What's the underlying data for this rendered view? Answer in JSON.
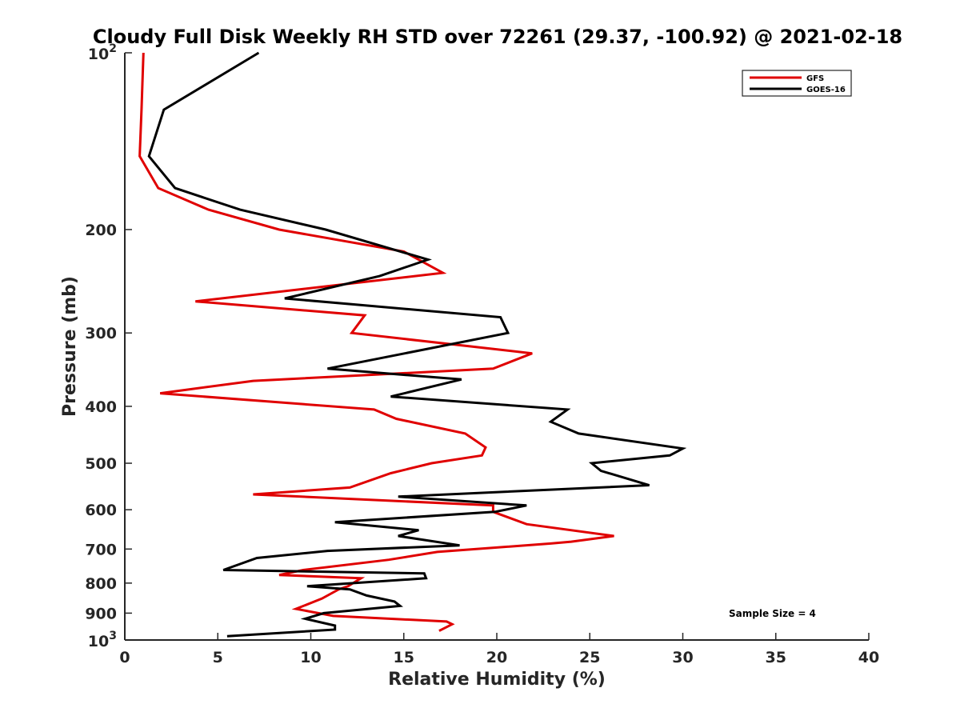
{
  "chart_data": {
    "type": "line",
    "title": "Cloudy Full Disk Weekly RH STD over 72261 (29.37, -100.92) @ 2021-02-18",
    "xlabel": "Relative Humidity (%)",
    "ylabel": "Pressure (mb)",
    "xlim": [
      0,
      40
    ],
    "ylim": [
      100,
      1000
    ],
    "y_scale": "log",
    "y_reversed": true,
    "grid": false,
    "legend_position": "top-right",
    "x_ticks": [
      "0",
      "5",
      "10",
      "15",
      "20",
      "25",
      "30",
      "35",
      "40"
    ],
    "y_ticks": [
      {
        "value": 100,
        "base": "10",
        "exp": "2"
      },
      {
        "value": 200,
        "label": "200"
      },
      {
        "value": 300,
        "label": "300"
      },
      {
        "value": 400,
        "label": "400"
      },
      {
        "value": 500,
        "label": "500"
      },
      {
        "value": 600,
        "label": "600"
      },
      {
        "value": 700,
        "label": "700"
      },
      {
        "value": 800,
        "label": "800"
      },
      {
        "value": 900,
        "label": "900"
      },
      {
        "value": 1000,
        "base": "10",
        "exp": "3"
      }
    ],
    "annotation": "Sample Size = 4",
    "series": [
      {
        "name": "GFS",
        "color": "#e00000",
        "points": [
          {
            "x": 1.0,
            "y": 100
          },
          {
            "x": 0.9,
            "y": 125
          },
          {
            "x": 0.8,
            "y": 150
          },
          {
            "x": 1.8,
            "y": 170
          },
          {
            "x": 4.5,
            "y": 185
          },
          {
            "x": 8.3,
            "y": 200
          },
          {
            "x": 15.0,
            "y": 218
          },
          {
            "x": 17.1,
            "y": 237
          },
          {
            "x": 3.8,
            "y": 265
          },
          {
            "x": 12.9,
            "y": 280
          },
          {
            "x": 12.2,
            "y": 300
          },
          {
            "x": 21.9,
            "y": 325
          },
          {
            "x": 19.8,
            "y": 345
          },
          {
            "x": 6.9,
            "y": 362
          },
          {
            "x": 1.9,
            "y": 380
          },
          {
            "x": 13.4,
            "y": 405
          },
          {
            "x": 14.6,
            "y": 420
          },
          {
            "x": 18.3,
            "y": 445
          },
          {
            "x": 19.4,
            "y": 470
          },
          {
            "x": 19.2,
            "y": 485
          },
          {
            "x": 16.5,
            "y": 500
          },
          {
            "x": 14.3,
            "y": 520
          },
          {
            "x": 12.1,
            "y": 550
          },
          {
            "x": 6.9,
            "y": 565
          },
          {
            "x": 19.8,
            "y": 590
          },
          {
            "x": 19.8,
            "y": 605
          },
          {
            "x": 21.6,
            "y": 635
          },
          {
            "x": 26.3,
            "y": 665
          },
          {
            "x": 24.0,
            "y": 680
          },
          {
            "x": 22.9,
            "y": 685
          },
          {
            "x": 16.8,
            "y": 708
          },
          {
            "x": 14.2,
            "y": 730
          },
          {
            "x": 9.6,
            "y": 760
          },
          {
            "x": 8.3,
            "y": 775
          },
          {
            "x": 12.7,
            "y": 785
          },
          {
            "x": 12.0,
            "y": 810
          },
          {
            "x": 11.5,
            "y": 820
          },
          {
            "x": 10.6,
            "y": 850
          },
          {
            "x": 9.2,
            "y": 885
          },
          {
            "x": 11.2,
            "y": 910
          },
          {
            "x": 17.3,
            "y": 930
          },
          {
            "x": 17.6,
            "y": 940
          },
          {
            "x": 16.9,
            "y": 965
          }
        ]
      },
      {
        "name": "GOES-16",
        "color": "#000000",
        "points": [
          {
            "x": 7.2,
            "y": 100
          },
          {
            "x": 2.1,
            "y": 125
          },
          {
            "x": 1.3,
            "y": 150
          },
          {
            "x": 2.7,
            "y": 170
          },
          {
            "x": 6.2,
            "y": 185
          },
          {
            "x": 10.8,
            "y": 200
          },
          {
            "x": 16.3,
            "y": 225
          },
          {
            "x": 13.7,
            "y": 240
          },
          {
            "x": 8.6,
            "y": 262
          },
          {
            "x": 20.2,
            "y": 282
          },
          {
            "x": 20.6,
            "y": 300
          },
          {
            "x": 10.9,
            "y": 345
          },
          {
            "x": 18.1,
            "y": 360
          },
          {
            "x": 14.3,
            "y": 385
          },
          {
            "x": 23.8,
            "y": 405
          },
          {
            "x": 22.9,
            "y": 425
          },
          {
            "x": 24.4,
            "y": 445
          },
          {
            "x": 30.0,
            "y": 472
          },
          {
            "x": 29.3,
            "y": 485
          },
          {
            "x": 25.1,
            "y": 500
          },
          {
            "x": 25.6,
            "y": 515
          },
          {
            "x": 28.2,
            "y": 545
          },
          {
            "x": 14.7,
            "y": 570
          },
          {
            "x": 21.6,
            "y": 590
          },
          {
            "x": 19.9,
            "y": 605
          },
          {
            "x": 11.3,
            "y": 630
          },
          {
            "x": 15.8,
            "y": 650
          },
          {
            "x": 14.7,
            "y": 665
          },
          {
            "x": 18.0,
            "y": 690
          },
          {
            "x": 10.9,
            "y": 705
          },
          {
            "x": 7.1,
            "y": 725
          },
          {
            "x": 5.3,
            "y": 760
          },
          {
            "x": 16.1,
            "y": 770
          },
          {
            "x": 16.2,
            "y": 785
          },
          {
            "x": 9.8,
            "y": 810
          },
          {
            "x": 12.1,
            "y": 820
          },
          {
            "x": 13.0,
            "y": 840
          },
          {
            "x": 14.5,
            "y": 860
          },
          {
            "x": 14.8,
            "y": 875
          },
          {
            "x": 10.7,
            "y": 900
          },
          {
            "x": 9.7,
            "y": 920
          },
          {
            "x": 11.3,
            "y": 945
          },
          {
            "x": 11.3,
            "y": 960
          },
          {
            "x": 5.5,
            "y": 985
          }
        ]
      }
    ]
  }
}
